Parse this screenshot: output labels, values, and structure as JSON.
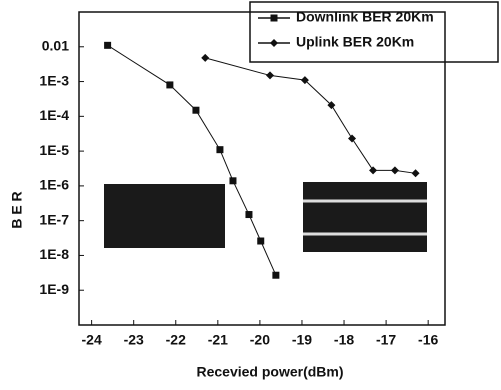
{
  "chart_data": {
    "type": "line",
    "x_label": "Recevied power(dBm)",
    "y_label": "B E R",
    "log_y": true,
    "xlim": [
      -24.3,
      -15.6
    ],
    "xticks": [
      -24,
      -23,
      -22,
      -21,
      -20,
      -19,
      -18,
      -17,
      -16
    ],
    "ylim": [
      1e-10,
      0.1
    ],
    "yticks": [
      0.01,
      {
        "value": 0.001,
        "label": "1E-3"
      },
      {
        "value": 0.0001,
        "label": "1E-4"
      },
      {
        "value": 1e-05,
        "label": "1E-5"
      },
      {
        "value": 1e-06,
        "label": "1E-6"
      },
      {
        "value": 1e-07,
        "label": "1E-7"
      },
      {
        "value": 1e-08,
        "label": "1E-8"
      },
      {
        "value": 1e-09,
        "label": "1E-9"
      }
    ],
    "legend": "top-right",
    "series": [
      {
        "name": "Downlink BER 20Km",
        "color": "#111111",
        "marker": "square",
        "x": [
          -23.62,
          -22.14,
          -21.52,
          -20.95,
          -20.64,
          -20.26,
          -19.98,
          -19.62
        ],
        "values": [
          0.011,
          0.0008,
          0.00015,
          1.1e-05,
          1.4e-06,
          1.5e-07,
          2.6e-08,
          2.7e-09
        ]
      },
      {
        "name": "Uplink BER 20Km",
        "color": "#111111",
        "marker": "diamond",
        "x": [
          -21.3,
          -19.76,
          -18.93,
          -18.3,
          -17.81,
          -17.31,
          -16.79,
          -16.3
        ],
        "values": [
          0.0048,
          0.0015,
          0.0011,
          0.00021,
          2.3e-05,
          2.8e-06,
          2.8e-06,
          2.3e-06
        ]
      }
    ]
  }
}
